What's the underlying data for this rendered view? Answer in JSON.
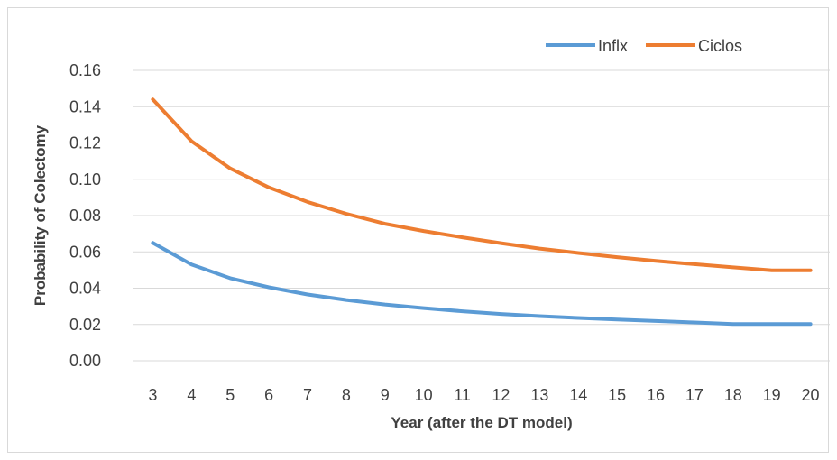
{
  "chart_data": {
    "type": "line",
    "title": "",
    "xlabel": "Year (after the DT model)",
    "ylabel": "Probability of Colectomy",
    "x": [
      3,
      4,
      5,
      6,
      7,
      8,
      9,
      10,
      11,
      12,
      13,
      14,
      15,
      16,
      17,
      18,
      19,
      20
    ],
    "yticks": [
      "0.00",
      "0.02",
      "0.04",
      "0.06",
      "0.08",
      "0.10",
      "0.12",
      "0.14",
      "0.16"
    ],
    "ylim": [
      0,
      0.16
    ],
    "grid": "horizontal",
    "legend_position": "top-right",
    "series": [
      {
        "name": "Inflx",
        "color": "#5b9bd5",
        "values": [
          0.065,
          0.053,
          0.0455,
          0.0405,
          0.0365,
          0.0335,
          0.031,
          0.029,
          0.0273,
          0.0258,
          0.0246,
          0.0236,
          0.0227,
          0.0219,
          0.0211,
          0.0202,
          0.0202,
          0.0202
        ]
      },
      {
        "name": "Ciclos",
        "color": "#ed7d31",
        "values": [
          0.144,
          0.121,
          0.106,
          0.0955,
          0.0875,
          0.081,
          0.0755,
          0.0715,
          0.068,
          0.0648,
          0.0618,
          0.0594,
          0.0571,
          0.055,
          0.0532,
          0.0515,
          0.0498,
          0.0498
        ]
      }
    ]
  }
}
